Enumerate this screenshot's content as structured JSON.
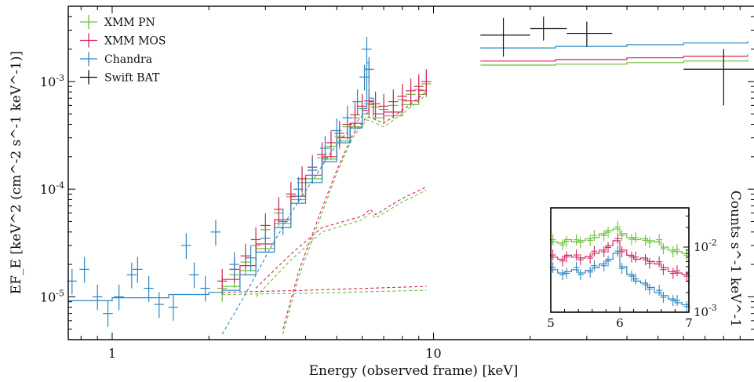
{
  "chart_data": {
    "type": "scatter",
    "xlabel": "Energy (observed frame) [keV]",
    "ylabel": "EF_E [keV^2 (cm^-2 s^-1 keV^-1)]",
    "xscale": "log",
    "yscale": "log",
    "xlim": [
      0.73,
      100
    ],
    "ylim": [
      4e-06,
      0.005
    ],
    "x_ticks": [
      {
        "value": 1,
        "label": "1"
      },
      {
        "value": 10,
        "label": "10"
      }
    ],
    "y_ticks": [
      {
        "value": 1e-05,
        "label": "10^-5"
      },
      {
        "value": 0.0001,
        "label": "10^-4"
      },
      {
        "value": 0.001,
        "label": "10^-3"
      }
    ],
    "legend": {
      "position": "top-left"
    },
    "series": [
      {
        "name": "XMM PN",
        "color": "#6bbf3a",
        "points": [
          [
            2.2,
            1.2e-05
          ],
          [
            2.4,
            1.6e-05
          ],
          [
            2.6,
            2.1e-05
          ],
          [
            2.8,
            3e-05
          ],
          [
            3.0,
            4.2e-05
          ],
          [
            3.3,
            6e-05
          ],
          [
            3.6,
            8.5e-05
          ],
          [
            3.9,
            0.000115
          ],
          [
            4.2,
            0.00015
          ],
          [
            4.5,
            0.000195
          ],
          [
            4.8,
            0.00025
          ],
          [
            5.1,
            0.00031
          ],
          [
            5.4,
            0.00038
          ],
          [
            5.7,
            0.00046
          ],
          [
            6.0,
            0.00056
          ],
          [
            6.3,
            0.00062
          ],
          [
            6.6,
            0.00058
          ],
          [
            7.0,
            0.00055
          ],
          [
            7.5,
            0.0006
          ],
          [
            8.0,
            0.00068
          ],
          [
            8.5,
            0.00076
          ],
          [
            9.0,
            0.00084
          ],
          [
            9.5,
            0.00095
          ]
        ],
        "model": [
          [
            2.2,
            1.25e-05
          ],
          [
            2.5,
            1.75e-05
          ],
          [
            2.8,
            2.8e-05
          ],
          [
            3.2,
            4.8e-05
          ],
          [
            3.6,
            8e-05
          ],
          [
            4.0,
            0.000125
          ],
          [
            4.5,
            0.00019
          ],
          [
            5.0,
            0.00028
          ],
          [
            5.5,
            0.00038
          ],
          [
            6.0,
            0.0005
          ],
          [
            6.3,
            0.00061
          ],
          [
            6.5,
            0.00046
          ],
          [
            7.0,
            0.00048
          ],
          [
            8.0,
            0.00061
          ],
          [
            9.0,
            0.00076
          ],
          [
            9.5,
            0.00086
          ]
        ],
        "bat_model": [
          [
            14,
            0.00142
          ],
          [
            24,
            0.00145
          ],
          [
            40,
            0.0015
          ],
          [
            60,
            0.00155
          ],
          [
            95,
            0.0016
          ]
        ],
        "comp1": [
          [
            2.2,
            1.05e-05
          ],
          [
            4,
            1.08e-05
          ],
          [
            9.5,
            1.15e-05
          ]
        ],
        "comp2": [
          [
            2.8,
            1e-05
          ],
          [
            3.6,
            2.2e-05
          ],
          [
            4.5,
            4e-05
          ],
          [
            6.0,
            5.2e-05
          ],
          [
            6.35,
            6e-05
          ],
          [
            6.6,
            5.4e-05
          ],
          [
            8,
            7.6e-05
          ],
          [
            9.5,
            9.8e-05
          ]
        ],
        "comp3": [
          [
            3.4,
            4.5e-06
          ],
          [
            3.8,
            1.5e-05
          ],
          [
            4.4,
            5e-05
          ],
          [
            5,
            0.00014
          ],
          [
            5.6,
            0.0003
          ],
          [
            6.2,
            0.00044
          ],
          [
            6.4,
            0.00043
          ],
          [
            7,
            0.00038
          ],
          [
            8,
            0.0005
          ],
          [
            9.5,
            0.00075
          ]
        ]
      },
      {
        "name": "XMM MOS",
        "color": "#d2295b",
        "points": [
          [
            2.2,
            1.4e-05
          ],
          [
            2.4,
            1.8e-05
          ],
          [
            2.6,
            2.4e-05
          ],
          [
            2.8,
            3.4e-05
          ],
          [
            3.0,
            4.6e-05
          ],
          [
            3.3,
            6.5e-05
          ],
          [
            3.6,
            9e-05
          ],
          [
            3.9,
            0.000125
          ],
          [
            4.2,
            0.00016
          ],
          [
            4.5,
            0.00021
          ],
          [
            4.8,
            0.00027
          ],
          [
            5.1,
            0.00033
          ],
          [
            5.4,
            0.0004
          ],
          [
            5.7,
            0.00049
          ],
          [
            6.0,
            0.00059
          ],
          [
            6.3,
            0.00066
          ],
          [
            6.6,
            0.00062
          ],
          [
            7.0,
            0.00059
          ],
          [
            7.5,
            0.00065
          ],
          [
            8.0,
            0.00073
          ],
          [
            8.5,
            0.00082
          ],
          [
            9.0,
            0.0009
          ],
          [
            9.5,
            0.001
          ]
        ],
        "model": [
          [
            2.2,
            1.45e-05
          ],
          [
            2.5,
            1.95e-05
          ],
          [
            2.8,
            3.1e-05
          ],
          [
            3.2,
            5.2e-05
          ],
          [
            3.6,
            8.6e-05
          ],
          [
            4.0,
            0.000135
          ],
          [
            4.5,
            0.0002
          ],
          [
            5.0,
            0.0003
          ],
          [
            5.5,
            0.00041
          ],
          [
            6.0,
            0.00054
          ],
          [
            6.3,
            0.00065
          ],
          [
            6.5,
            0.0005
          ],
          [
            7.0,
            0.00052
          ],
          [
            8.0,
            0.00066
          ],
          [
            9.0,
            0.00082
          ],
          [
            9.5,
            0.00092
          ]
        ],
        "bat_model": [
          [
            14,
            0.00155
          ],
          [
            24,
            0.0016
          ],
          [
            40,
            0.00166
          ],
          [
            60,
            0.00172
          ],
          [
            95,
            0.00178
          ]
        ],
        "comp1": [
          [
            2.2,
            1.1e-05
          ],
          [
            4,
            1.15e-05
          ],
          [
            9.5,
            1.25e-05
          ]
        ],
        "comp2": [
          [
            2.8,
            1.2e-05
          ],
          [
            3.6,
            2.5e-05
          ],
          [
            4.5,
            4.4e-05
          ],
          [
            6.0,
            5.6e-05
          ],
          [
            6.35,
            6.5e-05
          ],
          [
            6.6,
            5.8e-05
          ],
          [
            8,
            8.2e-05
          ],
          [
            9.5,
            0.000105
          ]
        ],
        "comp3": [
          [
            3.4,
            5e-06
          ],
          [
            3.8,
            1.7e-05
          ],
          [
            4.4,
            5.6e-05
          ],
          [
            5,
            0.00015
          ],
          [
            5.6,
            0.00032
          ],
          [
            6.2,
            0.00047
          ],
          [
            6.4,
            0.00046
          ],
          [
            7,
            0.00041
          ],
          [
            8,
            0.00054
          ],
          [
            9.5,
            0.0008
          ]
        ]
      },
      {
        "name": "Chandra",
        "color": "#2e86c1",
        "points": [
          [
            0.75,
            1.4e-05
          ],
          [
            0.82,
            1.8e-05
          ],
          [
            0.9,
            1e-05
          ],
          [
            0.97,
            7e-06
          ],
          [
            1.05,
            1e-05
          ],
          [
            1.15,
            1.6e-05
          ],
          [
            1.2,
            1.8e-05
          ],
          [
            1.3,
            1.2e-05
          ],
          [
            1.4,
            8.5e-06
          ],
          [
            1.55,
            8e-06
          ],
          [
            1.7,
            3e-05
          ],
          [
            1.8,
            1.6e-05
          ],
          [
            1.95,
            1.2e-05
          ],
          [
            2.1,
            4e-05
          ],
          [
            2.4,
            2e-05
          ],
          [
            2.7,
            2.3e-05
          ],
          [
            3.0,
            3.5e-05
          ],
          [
            3.4,
            5e-05
          ],
          [
            3.8,
            0.0001
          ],
          [
            4.2,
            0.00015
          ],
          [
            4.6,
            0.00024
          ],
          [
            5.0,
            0.00035
          ],
          [
            5.4,
            0.00046
          ],
          [
            5.8,
            0.00065
          ],
          [
            6.1,
            0.0011
          ],
          [
            6.2,
            0.002
          ],
          [
            6.3,
            0.0013
          ]
        ],
        "model": [
          [
            0.73,
            9.2e-06
          ],
          [
            1,
            9.8e-06
          ],
          [
            1.5,
            1.05e-05
          ],
          [
            2,
            1.1e-05
          ],
          [
            2.2,
            1.15e-05
          ],
          [
            2.5,
            1.6e-05
          ],
          [
            2.8,
            2.6e-05
          ],
          [
            3.2,
            4.4e-05
          ],
          [
            3.6,
            7.4e-05
          ],
          [
            4.0,
            0.000115
          ],
          [
            4.5,
            0.00018
          ],
          [
            5.0,
            0.00027
          ],
          [
            5.5,
            0.00037
          ],
          [
            6.0,
            0.00056
          ],
          [
            6.2,
            0.0015
          ],
          [
            6.3,
            0.0007
          ],
          [
            6.5,
            0.00065
          ]
        ],
        "bat_model": [
          [
            14,
            0.00205
          ],
          [
            24,
            0.00212
          ],
          [
            40,
            0.0022
          ],
          [
            60,
            0.00228
          ],
          [
            95,
            0.00238
          ]
        ],
        "comp3": [
          [
            2.2,
            4.5e-06
          ],
          [
            2.4,
            7e-06
          ],
          [
            2.7,
            1.3e-05
          ],
          [
            3.1,
            2.8e-05
          ],
          [
            3.6,
            6e-05
          ],
          [
            4.2,
            0.00012
          ],
          [
            4.8,
            0.00022
          ],
          [
            5.4,
            0.00034
          ],
          [
            6.0,
            0.00048
          ],
          [
            6.3,
            0.00052
          ]
        ]
      },
      {
        "name": "Swift BAT",
        "color": "#111111",
        "points": [
          [
            16.5,
            0.0027
          ],
          [
            22,
            0.0031
          ],
          [
            30,
            0.0028
          ],
          [
            80,
            0.0013
          ]
        ],
        "xerr": [
          [
            14,
            20
          ],
          [
            20,
            26
          ],
          [
            26,
            36
          ],
          [
            60,
            100
          ]
        ],
        "yerr": [
          [
            0.0017,
            0.0039
          ],
          [
            0.0024,
            0.004
          ],
          [
            0.0021,
            0.0036
          ],
          [
            0.0006,
            0.002
          ]
        ]
      }
    ],
    "inset": {
      "xlabel": "",
      "ylabel": "Counts s^-1 keV^-1",
      "xlim": [
        5,
        7
      ],
      "ylim": [
        0.001,
        0.04
      ],
      "x_ticks": [
        {
          "value": 5,
          "label": "5"
        },
        {
          "value": 6,
          "label": "6"
        },
        {
          "value": 7,
          "label": "7"
        }
      ],
      "y_ticks": [
        {
          "value": 0.001,
          "label": "10^-3"
        },
        {
          "value": 0.01,
          "label": "10^-2"
        }
      ],
      "series": [
        {
          "name": "XMM PN",
          "color": "#6bbf3a",
          "values": [
            [
              5.05,
              0.012
            ],
            [
              5.15,
              0.0115
            ],
            [
              5.25,
              0.013
            ],
            [
              5.35,
              0.012
            ],
            [
              5.45,
              0.0125
            ],
            [
              5.55,
              0.0135
            ],
            [
              5.65,
              0.014
            ],
            [
              5.75,
              0.016
            ],
            [
              5.85,
              0.018
            ],
            [
              5.95,
              0.019
            ],
            [
              6.05,
              0.016
            ],
            [
              6.15,
              0.014
            ],
            [
              6.25,
              0.013
            ],
            [
              6.35,
              0.0135
            ],
            [
              6.45,
              0.0125
            ],
            [
              6.55,
              0.012
            ],
            [
              6.65,
              0.01
            ],
            [
              6.75,
              0.009
            ],
            [
              6.85,
              0.0085
            ],
            [
              6.95,
              0.008
            ]
          ]
        },
        {
          "name": "XMM MOS",
          "color": "#d2295b",
          "values": [
            [
              5.05,
              0.007
            ],
            [
              5.15,
              0.0065
            ],
            [
              5.25,
              0.0075
            ],
            [
              5.35,
              0.007
            ],
            [
              5.45,
              0.0068
            ],
            [
              5.55,
              0.0072
            ],
            [
              5.65,
              0.008
            ],
            [
              5.75,
              0.009
            ],
            [
              5.85,
              0.0105
            ],
            [
              5.95,
              0.0125
            ],
            [
              6.05,
              0.009
            ],
            [
              6.15,
              0.0075
            ],
            [
              6.25,
              0.0065
            ],
            [
              6.35,
              0.0068
            ],
            [
              6.45,
              0.006
            ],
            [
              6.55,
              0.0055
            ],
            [
              6.65,
              0.0048
            ],
            [
              6.75,
              0.0042
            ],
            [
              6.85,
              0.004
            ],
            [
              6.95,
              0.0038
            ]
          ]
        },
        {
          "name": "Chandra",
          "color": "#2e86c1",
          "values": [
            [
              5.05,
              0.0045
            ],
            [
              5.15,
              0.004
            ],
            [
              5.25,
              0.0042
            ],
            [
              5.35,
              0.0045
            ],
            [
              5.45,
              0.004
            ],
            [
              5.55,
              0.0044
            ],
            [
              5.65,
              0.0048
            ],
            [
              5.75,
              0.0055
            ],
            [
              5.85,
              0.0065
            ],
            [
              5.95,
              0.008
            ],
            [
              6.05,
              0.005
            ],
            [
              6.15,
              0.0038
            ],
            [
              6.25,
              0.003
            ],
            [
              6.35,
              0.0028
            ],
            [
              6.45,
              0.0024
            ],
            [
              6.55,
              0.002
            ],
            [
              6.65,
              0.0018
            ],
            [
              6.75,
              0.0016
            ],
            [
              6.85,
              0.0014
            ],
            [
              6.95,
              0.0013
            ]
          ]
        }
      ]
    }
  }
}
